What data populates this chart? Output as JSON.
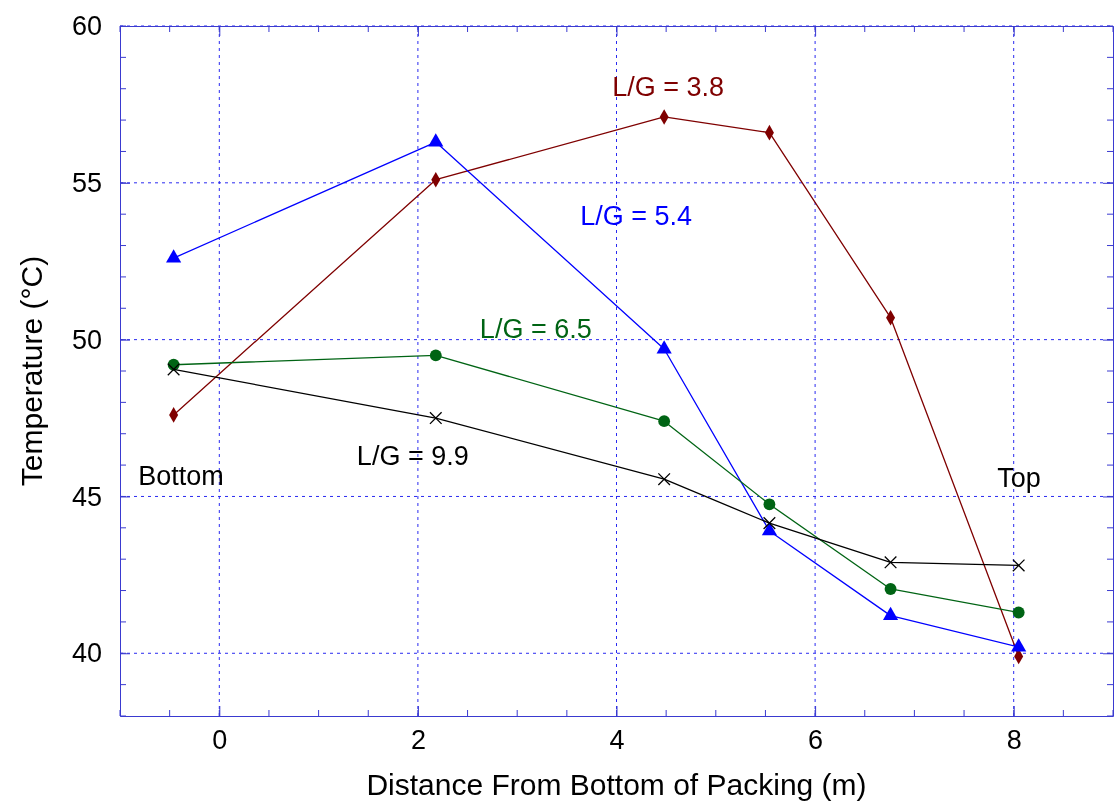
{
  "chart_data": {
    "type": "line",
    "xlabel": "Distance From Bottom of Packing (m)",
    "ylabel": "Temperature (°C)",
    "x": [
      -0.46,
      2.18,
      4.48,
      5.54,
      6.76,
      8.05
    ],
    "xlim": [
      -1,
      9
    ],
    "xticks": [
      0,
      2,
      4,
      6,
      8
    ],
    "ylim": [
      38,
      60
    ],
    "yticks": [
      40,
      45,
      50,
      55,
      60
    ],
    "grid": true,
    "line_style": "solid",
    "series": [
      {
        "name": "L/G = 3.8",
        "color": "#7f0000",
        "marker": "diamond",
        "values": [
          47.6,
          55.1,
          57.1,
          56.6,
          50.7,
          39.9
        ]
      },
      {
        "name": "L/G = 5.4",
        "color": "#0000ff",
        "marker": "triangle",
        "values": [
          52.6,
          56.3,
          49.7,
          43.9,
          41.2,
          40.2
        ]
      },
      {
        "name": "L/G = 6.5",
        "color": "#006414",
        "marker": "circle",
        "values": [
          49.2,
          49.5,
          47.4,
          44.75,
          42.05,
          41.3
        ]
      },
      {
        "name": "L/G = 9.9",
        "color": "#000000",
        "marker": "cross",
        "values": [
          49.05,
          47.5,
          45.55,
          44.15,
          42.9,
          42.8
        ]
      }
    ],
    "annotations": [
      "Bottom",
      "Top"
    ]
  }
}
